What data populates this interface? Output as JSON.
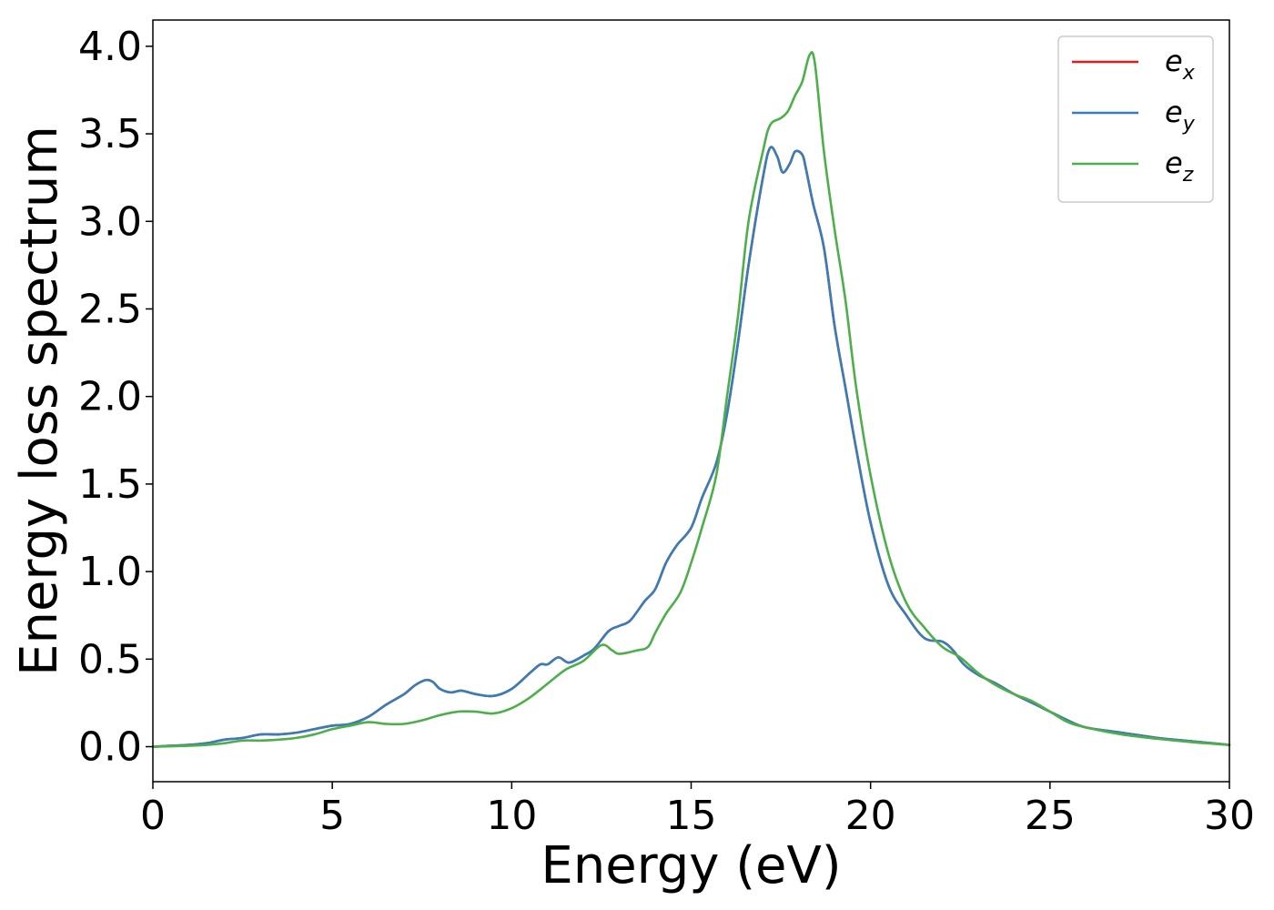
{
  "chart_data": {
    "type": "line",
    "title": "",
    "xlabel": "Energy (eV)",
    "ylabel": "Energy loss spectrum",
    "xlim": [
      0,
      30
    ],
    "ylim": [
      -0.2,
      4.15
    ],
    "xticks": [
      0,
      5,
      10,
      15,
      20,
      25,
      30
    ],
    "xtick_labels": [
      "0",
      "5",
      "10",
      "15",
      "20",
      "25",
      "30"
    ],
    "yticks": [
      0.0,
      0.5,
      1.0,
      1.5,
      2.0,
      2.5,
      3.0,
      3.5,
      4.0
    ],
    "ytick_labels": [
      "0.0",
      "0.5",
      "1.0",
      "1.5",
      "2.0",
      "2.5",
      "3.0",
      "3.5",
      "4.0"
    ],
    "grid": false,
    "legend_position": "top-right",
    "series": [
      {
        "name": "e_x",
        "label_main": "e",
        "label_sub": "x",
        "color": "#e41a1c",
        "x": [
          0,
          1,
          1.5,
          2,
          2.5,
          3,
          3.5,
          4,
          4.5,
          5,
          5.5,
          6,
          6.5,
          7,
          7.3,
          7.6,
          7.8,
          8,
          8.3,
          8.6,
          9,
          9.5,
          10,
          10.5,
          10.8,
          11,
          11.3,
          11.6,
          12,
          12.3,
          12.7,
          13,
          13.3,
          13.7,
          14,
          14.3,
          14.6,
          15,
          15.3,
          15.7,
          16,
          16.3,
          16.6,
          17,
          17.2,
          17.4,
          17.55,
          17.75,
          17.9,
          18.1,
          18.2,
          18.4,
          18.7,
          19,
          19.3,
          19.6,
          20,
          20.5,
          21,
          21.5,
          22,
          22.3,
          22.6,
          23,
          23.5,
          24,
          24.5,
          25,
          25.5,
          26,
          27,
          28,
          29,
          30
        ],
        "y": [
          0.0,
          0.01,
          0.02,
          0.04,
          0.05,
          0.07,
          0.07,
          0.08,
          0.1,
          0.12,
          0.13,
          0.17,
          0.24,
          0.3,
          0.35,
          0.38,
          0.37,
          0.33,
          0.31,
          0.32,
          0.3,
          0.29,
          0.33,
          0.42,
          0.47,
          0.47,
          0.51,
          0.48,
          0.52,
          0.56,
          0.66,
          0.69,
          0.72,
          0.83,
          0.9,
          1.05,
          1.15,
          1.25,
          1.42,
          1.62,
          1.9,
          2.3,
          2.75,
          3.25,
          3.42,
          3.37,
          3.28,
          3.33,
          3.4,
          3.38,
          3.3,
          3.1,
          2.85,
          2.4,
          2.05,
          1.7,
          1.28,
          0.92,
          0.75,
          0.62,
          0.6,
          0.55,
          0.47,
          0.41,
          0.36,
          0.3,
          0.25,
          0.2,
          0.15,
          0.11,
          0.08,
          0.05,
          0.03,
          0.01
        ]
      },
      {
        "name": "e_y",
        "label_main": "e",
        "label_sub": "y",
        "color": "#377eb8",
        "x": [
          0,
          1,
          1.5,
          2,
          2.5,
          3,
          3.5,
          4,
          4.5,
          5,
          5.5,
          6,
          6.5,
          7,
          7.3,
          7.6,
          7.8,
          8,
          8.3,
          8.6,
          9,
          9.5,
          10,
          10.5,
          10.8,
          11,
          11.3,
          11.6,
          12,
          12.3,
          12.7,
          13,
          13.3,
          13.7,
          14,
          14.3,
          14.6,
          15,
          15.3,
          15.7,
          16,
          16.3,
          16.6,
          17,
          17.2,
          17.4,
          17.55,
          17.75,
          17.9,
          18.1,
          18.2,
          18.4,
          18.7,
          19,
          19.3,
          19.6,
          20,
          20.5,
          21,
          21.5,
          22,
          22.3,
          22.6,
          23,
          23.5,
          24,
          24.5,
          25,
          25.5,
          26,
          27,
          28,
          29,
          30
        ],
        "y": [
          0.0,
          0.01,
          0.02,
          0.04,
          0.05,
          0.07,
          0.07,
          0.08,
          0.1,
          0.12,
          0.13,
          0.17,
          0.24,
          0.3,
          0.35,
          0.38,
          0.37,
          0.33,
          0.31,
          0.32,
          0.3,
          0.29,
          0.33,
          0.42,
          0.47,
          0.47,
          0.51,
          0.48,
          0.52,
          0.56,
          0.66,
          0.69,
          0.72,
          0.83,
          0.9,
          1.05,
          1.15,
          1.25,
          1.42,
          1.62,
          1.9,
          2.3,
          2.75,
          3.25,
          3.42,
          3.37,
          3.28,
          3.33,
          3.4,
          3.38,
          3.3,
          3.1,
          2.85,
          2.4,
          2.05,
          1.7,
          1.28,
          0.92,
          0.75,
          0.62,
          0.6,
          0.55,
          0.47,
          0.41,
          0.36,
          0.3,
          0.25,
          0.2,
          0.15,
          0.11,
          0.08,
          0.05,
          0.03,
          0.01
        ]
      },
      {
        "name": "e_z",
        "label_main": "e",
        "label_sub": "z",
        "color": "#4daf4a",
        "x": [
          0,
          1,
          1.5,
          2,
          2.5,
          3,
          3.5,
          4,
          4.5,
          5,
          5.5,
          6,
          6.5,
          7,
          7.5,
          8,
          8.5,
          9,
          9.5,
          10,
          10.5,
          11,
          11.5,
          12,
          12.5,
          12.8,
          13,
          13.5,
          13.8,
          14,
          14.3,
          14.7,
          15,
          15.3,
          15.7,
          16,
          16.3,
          16.6,
          17,
          17.2,
          17.5,
          17.7,
          17.9,
          18.1,
          18.3,
          18.45,
          18.7,
          19,
          19.3,
          19.6,
          20,
          20.5,
          21,
          21.5,
          22,
          22.5,
          23,
          23.5,
          24,
          24.5,
          25,
          25.5,
          26,
          27,
          28,
          29,
          30
        ],
        "y": [
          0.0,
          0.005,
          0.01,
          0.02,
          0.035,
          0.035,
          0.04,
          0.05,
          0.07,
          0.1,
          0.12,
          0.14,
          0.13,
          0.13,
          0.15,
          0.18,
          0.2,
          0.2,
          0.19,
          0.22,
          0.28,
          0.36,
          0.44,
          0.49,
          0.58,
          0.55,
          0.53,
          0.55,
          0.57,
          0.65,
          0.76,
          0.88,
          1.05,
          1.25,
          1.55,
          2.0,
          2.45,
          3.0,
          3.4,
          3.55,
          3.59,
          3.63,
          3.72,
          3.8,
          3.95,
          3.9,
          3.4,
          2.95,
          2.55,
          2.05,
          1.55,
          1.1,
          0.82,
          0.68,
          0.57,
          0.51,
          0.42,
          0.35,
          0.3,
          0.26,
          0.2,
          0.14,
          0.11,
          0.07,
          0.045,
          0.025,
          0.01
        ]
      }
    ]
  }
}
